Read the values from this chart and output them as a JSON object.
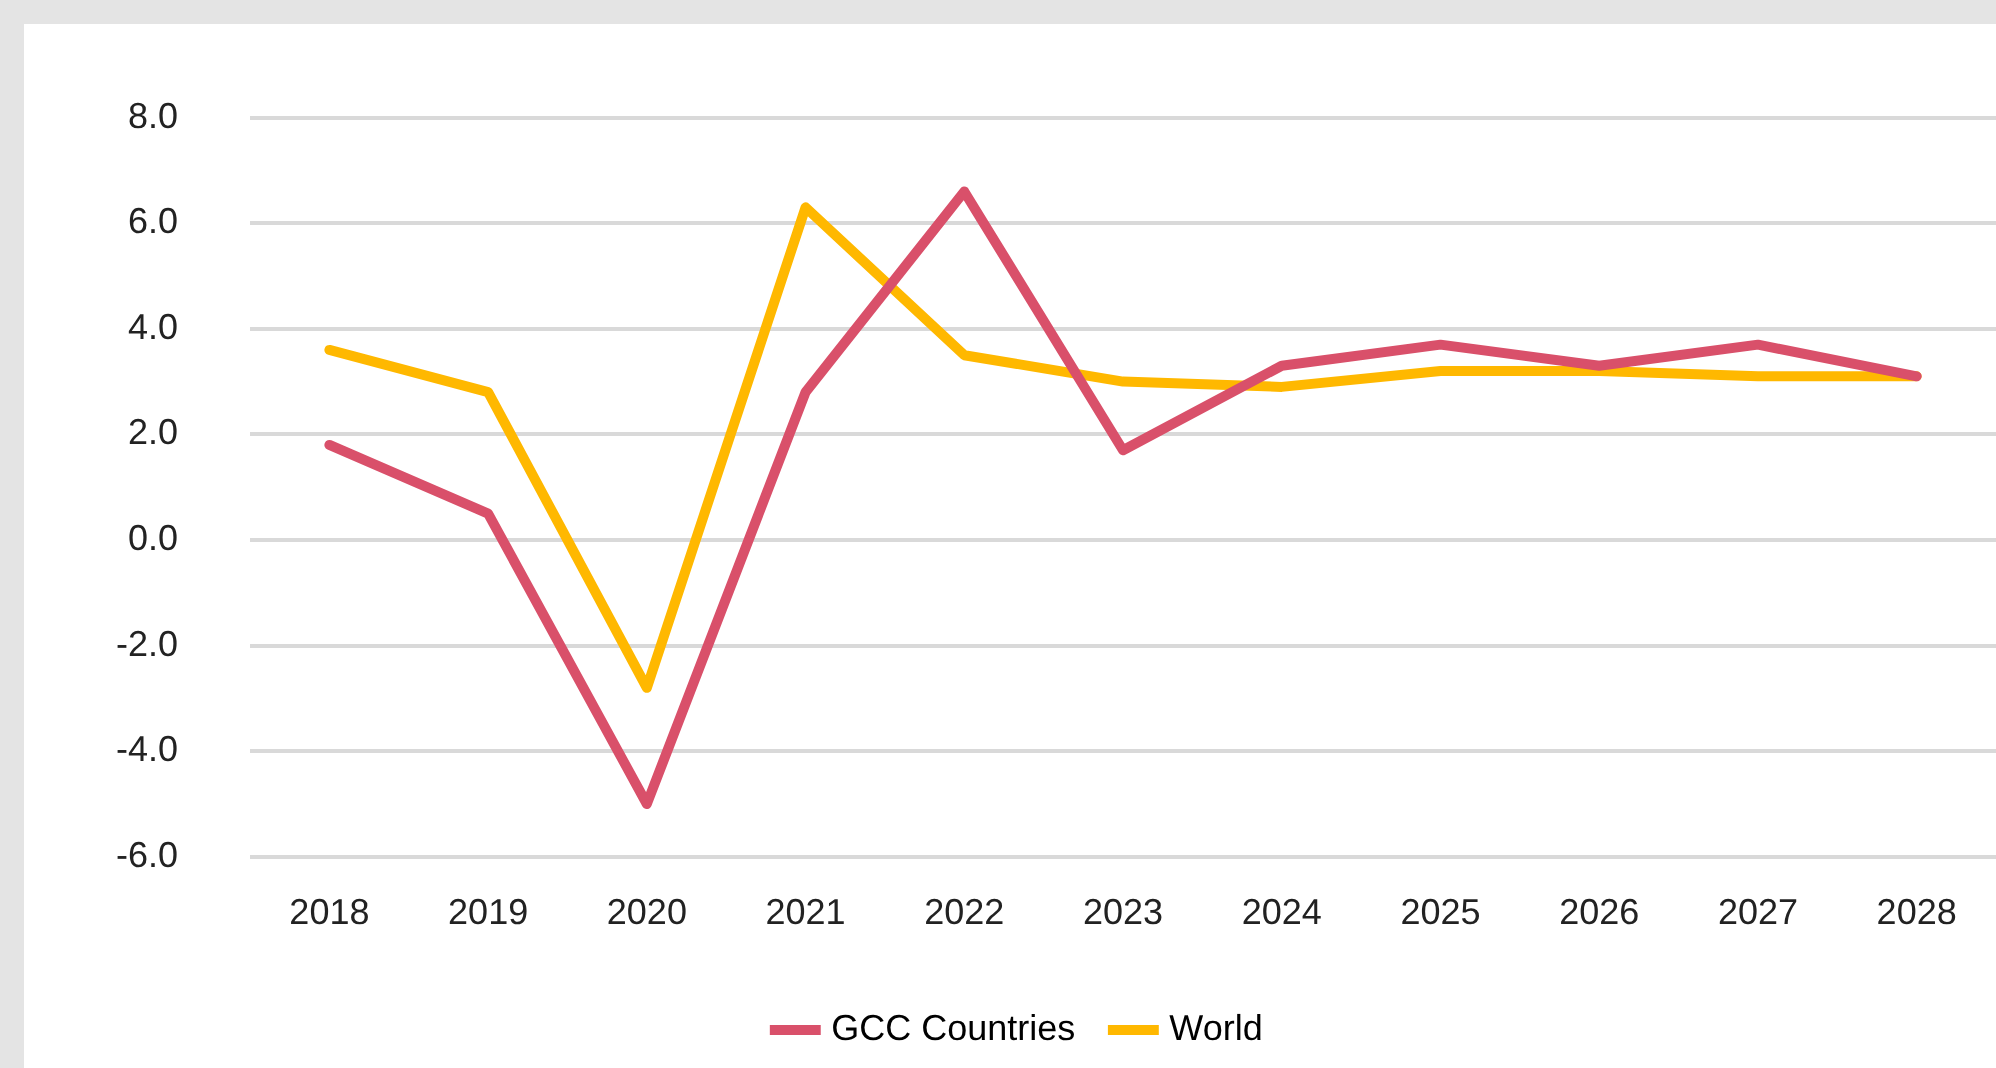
{
  "chart_data": {
    "type": "line",
    "categories": [
      "2018",
      "2019",
      "2020",
      "2021",
      "2022",
      "2023",
      "2024",
      "2025",
      "2026",
      "2027",
      "2028"
    ],
    "series": [
      {
        "name": "GCC Countries",
        "color": "#d9506a",
        "values": [
          1.8,
          0.5,
          -5.0,
          2.8,
          6.6,
          1.7,
          3.3,
          3.7,
          3.3,
          3.7,
          3.1
        ]
      },
      {
        "name": "World",
        "color": "#ffb800",
        "values": [
          3.6,
          2.8,
          -2.8,
          6.3,
          3.5,
          3.0,
          2.9,
          3.2,
          3.2,
          3.1,
          3.1
        ]
      }
    ],
    "ylim": [
      -6,
      8
    ],
    "yticks": [
      {
        "value": -6,
        "label": "-6.0"
      },
      {
        "value": -4,
        "label": "-4.0"
      },
      {
        "value": -2,
        "label": "-2.0"
      },
      {
        "value": 0,
        "label": "0.0"
      },
      {
        "value": 2,
        "label": "2.0"
      },
      {
        "value": 4,
        "label": "4.0"
      },
      {
        "value": 6,
        "label": "6.0"
      },
      {
        "value": 8,
        "label": "8.0"
      }
    ],
    "grid": "y",
    "legend": "bottom",
    "marker": "none",
    "line_style": "solid"
  }
}
